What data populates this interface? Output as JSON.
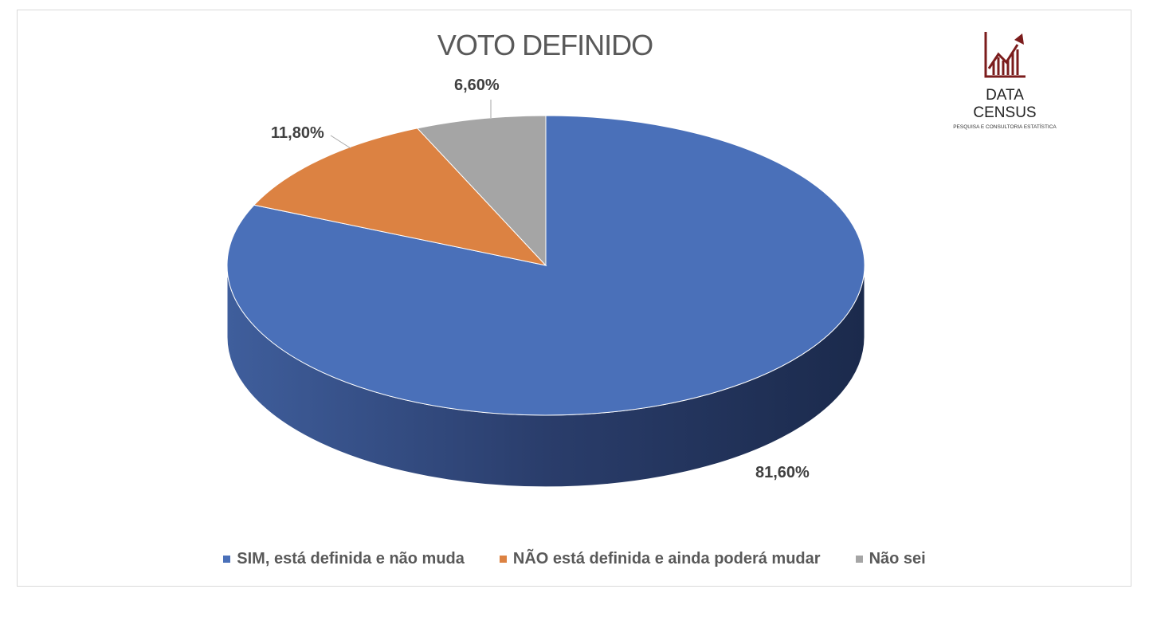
{
  "chart_data": {
    "type": "pie",
    "title": "VOTO DEFINIDO",
    "categories": [
      "SIM, está definida e não muda",
      "NÃO está definida e ainda poderá mudar",
      "Não sei"
    ],
    "values": [
      81.6,
      11.8,
      6.6
    ],
    "data_labels": [
      "81,60%",
      "11,80%",
      "6,60%"
    ],
    "colors": [
      "#4a70b9",
      "#dc8242",
      "#a5a5a5"
    ],
    "legend_position": "bottom"
  },
  "logo": {
    "name": "DATA CENSUS",
    "tagline": "PESQUISA E CONSULTORIA ESTATÍSTICA",
    "color": "#7b1c1c"
  }
}
